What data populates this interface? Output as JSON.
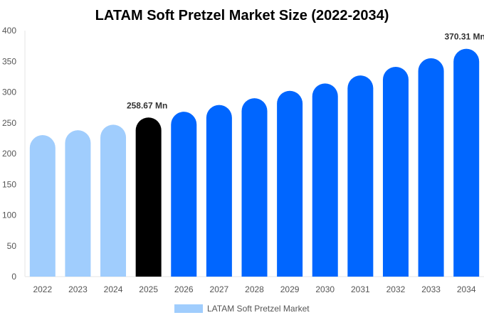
{
  "chart_data": {
    "type": "bar",
    "title": "LATAM Soft Pretzel Market Size (2022-2034)",
    "xlabel": "",
    "ylabel": "",
    "ylim": [
      0,
      400
    ],
    "yticks": [
      0,
      50,
      100,
      150,
      200,
      250,
      300,
      350,
      400
    ],
    "grid": false,
    "legend_placement": "bottom",
    "categories": [
      "2022",
      "2023",
      "2024",
      "2025",
      "2026",
      "2027",
      "2028",
      "2029",
      "2030",
      "2031",
      "2032",
      "2033",
      "2034"
    ],
    "series": [
      {
        "name": "LATAM Soft Pretzel Market",
        "values": [
          230,
          238,
          247,
          258.67,
          268,
          279,
          290,
          302,
          314,
          327,
          341,
          355,
          370.31
        ]
      }
    ],
    "bar_colors": [
      "#a0cdfd",
      "#a0cdfd",
      "#a0cdfd",
      "#000000",
      "#0066ff",
      "#0066ff",
      "#0066ff",
      "#0066ff",
      "#0066ff",
      "#0066ff",
      "#0066ff",
      "#0066ff",
      "#0066ff"
    ],
    "legend_color": "#a0cdfd",
    "data_labels": [
      {
        "category": "2025",
        "text": "258.67 Mn"
      },
      {
        "category": "2034",
        "text": "370.31 Mn"
      }
    ]
  }
}
